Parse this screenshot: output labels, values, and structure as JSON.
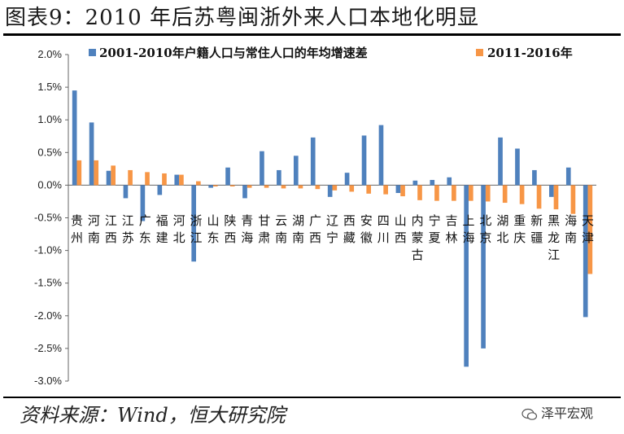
{
  "header": {
    "title": "图表9：2010 年后苏粤闽浙外来人口本地化明显"
  },
  "footer": {
    "source": "资料来源：Wind，恒大研究院",
    "watermark": "泽平宏观",
    "watermark_icon": "wechat-icon"
  },
  "colors": {
    "series1": "#4f81bd",
    "series2": "#f79646"
  },
  "chart_data": {
    "type": "bar",
    "title": "",
    "xlabel": "",
    "ylabel": "",
    "ylim": [
      -3.0,
      2.0
    ],
    "ytick_step": 0.5,
    "yticks": [
      "2.0%",
      "1.5%",
      "1.0%",
      "0.5%",
      "0.0%",
      "-0.5%",
      "-1.0%",
      "-1.5%",
      "-2.0%",
      "-2.5%",
      "-3.0%"
    ],
    "legend_position": "top",
    "grid": false,
    "categories": [
      "贵州",
      "河南",
      "江西",
      "江苏",
      "广东",
      "福建",
      "河北",
      "浙江",
      "山东",
      "陕西",
      "青海",
      "甘肃",
      "云南",
      "湖南",
      "广西",
      "辽宁",
      "西藏",
      "安徽",
      "四川",
      "山西",
      "内蒙古",
      "宁夏",
      "吉林",
      "上海",
      "北京",
      "湖北",
      "重庆",
      "新疆",
      "黑龙江",
      "海南",
      "天津"
    ],
    "series": [
      {
        "name": "2001-2010年户籍人口与常住人口的年均增速差",
        "values": [
          1.45,
          0.96,
          0.22,
          -0.2,
          -0.55,
          -0.15,
          0.16,
          -1.17,
          -0.04,
          0.27,
          -0.2,
          0.52,
          0.23,
          0.45,
          0.73,
          -0.18,
          0.19,
          0.76,
          0.92,
          -0.12,
          0.07,
          0.08,
          0.12,
          -2.78,
          -2.5,
          0.73,
          0.56,
          0.23,
          -0.18,
          0.27,
          -2.02
        ]
      },
      {
        "name": "2011-2016年",
        "values": [
          0.38,
          0.38,
          0.3,
          0.23,
          0.2,
          0.18,
          0.16,
          0.06,
          -0.02,
          -0.02,
          -0.04,
          -0.04,
          -0.05,
          -0.05,
          -0.06,
          -0.08,
          -0.1,
          -0.13,
          -0.14,
          -0.17,
          -0.23,
          -0.24,
          -0.24,
          -0.24,
          -0.25,
          -0.27,
          -0.29,
          -0.36,
          -0.37,
          -0.44,
          -1.36
        ]
      }
    ]
  }
}
